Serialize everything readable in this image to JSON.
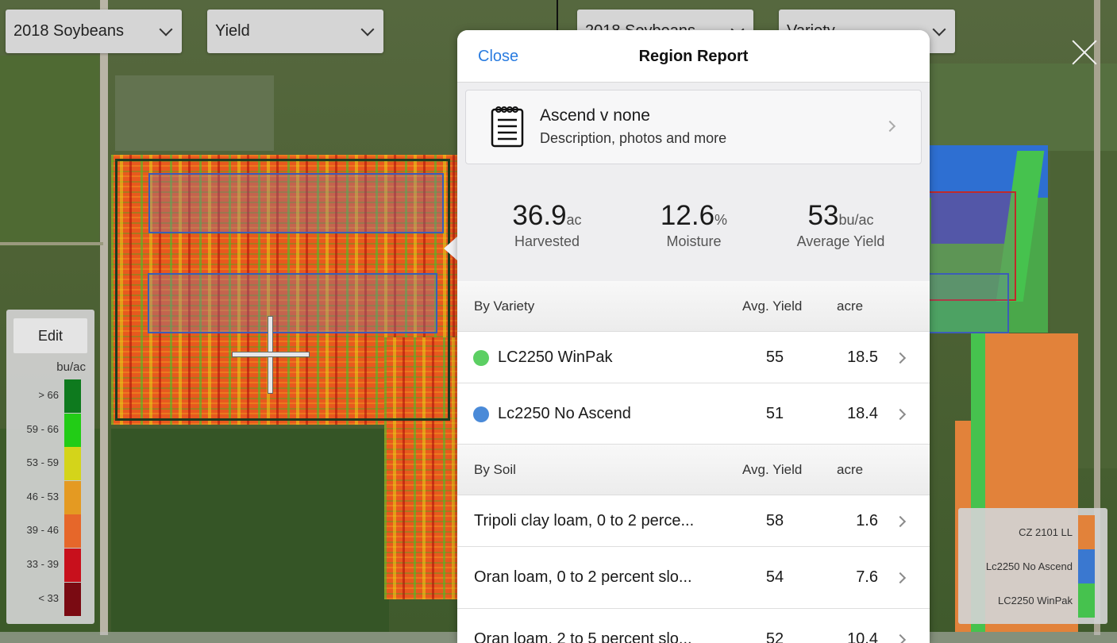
{
  "left_map": {
    "crop_select": "2018 Soybeans",
    "layer_select": "Yield"
  },
  "right_map": {
    "crop_select": "2018 Soybeans",
    "layer_select": "Variety"
  },
  "yield_legend": {
    "edit_label": "Edit",
    "unit": "bu/ac",
    "bins": [
      {
        "label": "> 66",
        "color": "#0e7a1e"
      },
      {
        "label": "59 - 66",
        "color": "#22cc16"
      },
      {
        "label": "53 - 59",
        "color": "#d4d41a"
      },
      {
        "label": "46 - 53",
        "color": "#e49a22"
      },
      {
        "label": "39 - 46",
        "color": "#e6672a"
      },
      {
        "label": "33 - 39",
        "color": "#c8101c"
      },
      {
        "label": "< 33",
        "color": "#7a0a12"
      }
    ]
  },
  "variety_legend": {
    "items": [
      {
        "label": "CZ 2101 LL",
        "color": "#e2823a"
      },
      {
        "label": "Lc2250 No Ascend",
        "color": "#3a78d0"
      },
      {
        "label": "LC2250 WinPak",
        "color": "#46c24e"
      }
    ]
  },
  "report": {
    "close_label": "Close",
    "title": "Region Report",
    "card": {
      "title": "Ascend v none",
      "subtitle": "Description, photos and more",
      "icon": "notebook-icon"
    },
    "stats": [
      {
        "value": "36.9",
        "unit": "ac",
        "caption": "Harvested"
      },
      {
        "value": "12.6",
        "unit": "%",
        "caption": "Moisture"
      },
      {
        "value": "53",
        "unit": "bu/ac",
        "caption": "Average Yield"
      }
    ],
    "by_variety": {
      "header": "By Variety",
      "col_yield": "Avg. Yield",
      "col_acre": "acre",
      "rows": [
        {
          "name": "LC2250 WinPak",
          "yield": "55",
          "acre": "18.5",
          "color": "#5ccf63"
        },
        {
          "name": "Lc2250 No Ascend",
          "yield": "51",
          "acre": "18.4",
          "color": "#4a8ad8"
        }
      ]
    },
    "by_soil": {
      "header": "By Soil",
      "col_yield": "Avg. Yield",
      "col_acre": "acre",
      "rows": [
        {
          "name": "Tripoli clay loam, 0 to 2 perce...",
          "yield": "58",
          "acre": "1.6"
        },
        {
          "name": "Oran loam, 0 to 2 percent slo...",
          "yield": "54",
          "acre": "7.6"
        },
        {
          "name": "Oran loam, 2 to 5 percent slo...",
          "yield": "52",
          "acre": "10.4"
        }
      ]
    }
  }
}
